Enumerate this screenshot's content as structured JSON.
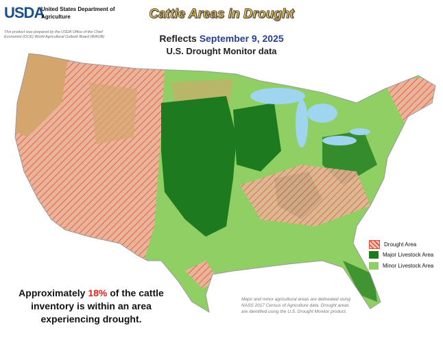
{
  "header": {
    "logo": "USDA",
    "agency": "United States Department of Agriculture",
    "prepared_by": "This product was prepared by the USDA Office of the Chief Economist (OCE) World Agricultural Outlook Board (WAOB)",
    "title": "Cattle Areas in Drought",
    "reflects": "Reflects",
    "date": "September 9, 2025",
    "source": "U.S. Drought Monitor data"
  },
  "legend": [
    "Drought Area",
    "Major Livestock Area",
    "Minor Livestock Area"
  ],
  "summary": {
    "prefix": "Approximately",
    "highlight": "18%",
    "suffix": "of the cattle inventory is within an area experiencing drought."
  },
  "note": "Major and minor agricultural areas are delineated using NASS 2017 Census of Agriculture data.  Drought areas are identified using the U.S. Drought Monitor product."
}
